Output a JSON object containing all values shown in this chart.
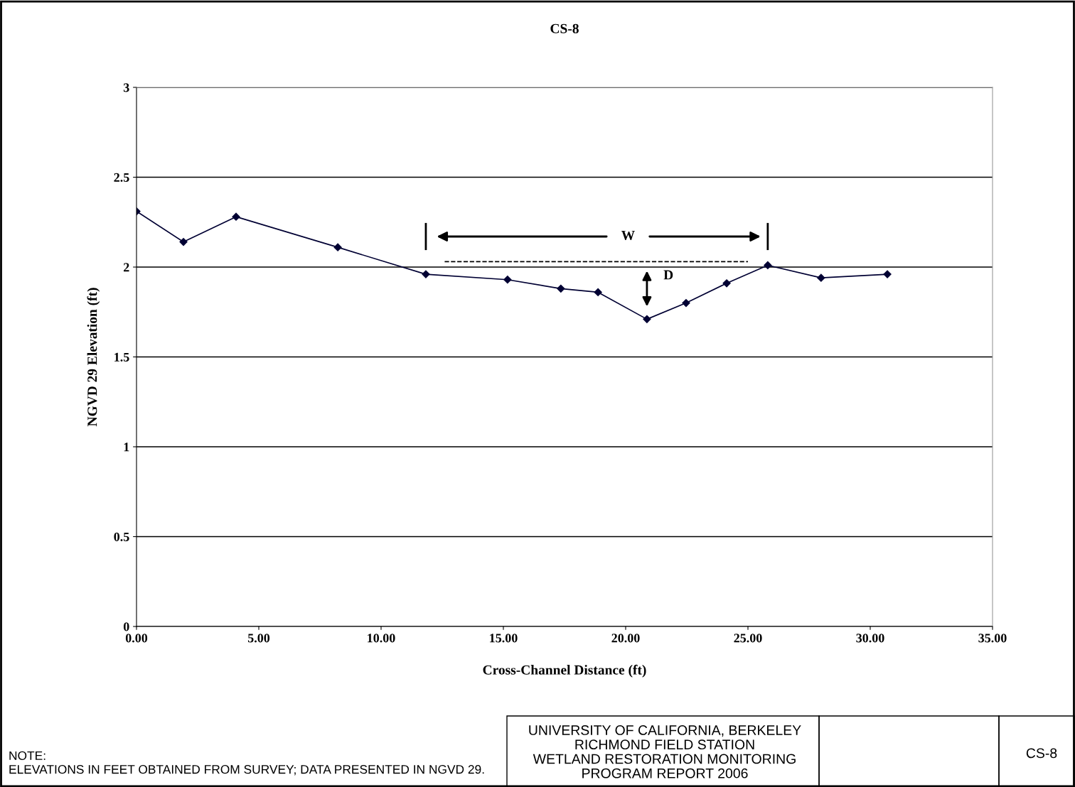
{
  "chart_data": {
    "type": "line",
    "title": "CS-8",
    "xlabel": "Cross-Channel Distance (ft)",
    "ylabel": "NGVD 29 Elevation (ft)",
    "xlim": [
      0,
      35
    ],
    "ylim": [
      0,
      3
    ],
    "xticks": [
      {
        "value": 0,
        "label": "0.00"
      },
      {
        "value": 5,
        "label": "5.00"
      },
      {
        "value": 10,
        "label": "10.00"
      },
      {
        "value": 15,
        "label": "15.00"
      },
      {
        "value": 20,
        "label": "20.00"
      },
      {
        "value": 25,
        "label": "25.00"
      },
      {
        "value": 30,
        "label": "30.00"
      },
      {
        "value": 35,
        "label": "35.00"
      }
    ],
    "yticks": [
      0,
      0.5,
      1,
      1.5,
      2,
      2.5,
      3
    ],
    "grid": "y",
    "legend": false,
    "series": [
      {
        "color": "#000033",
        "marker": "diamond",
        "line_style": "solid",
        "x": [
          0,
          1.92,
          4.07,
          8.23,
          11.83,
          15.17,
          17.35,
          18.87,
          20.87,
          22.47,
          24.13,
          25.81,
          27.99,
          30.7
        ],
        "values": [
          2.31,
          2.14,
          2.28,
          2.11,
          1.96,
          1.93,
          1.88,
          1.86,
          1.71,
          1.8,
          1.91,
          2.01,
          1.94,
          1.96
        ]
      },
      {
        "color": "#000000",
        "marker": "none",
        "line_style": "dashed",
        "x": [
          12.6,
          25.0
        ],
        "values": [
          2.03,
          2.03
        ]
      }
    ],
    "annotations": [
      "W",
      "D",
      "NOTE:\nELEVATIONS IN FEET OBTAINED FROM SURVEY; DATA PRESENTED IN NGVD 29.",
      "UNIVERSITY OF CALIFORNIA, BERKELEY\nRICHMOND FIELD STATION\nWETLAND RESTORATION MONITORING\nPROGRAM REPORT 2006",
      "CS-8"
    ]
  }
}
